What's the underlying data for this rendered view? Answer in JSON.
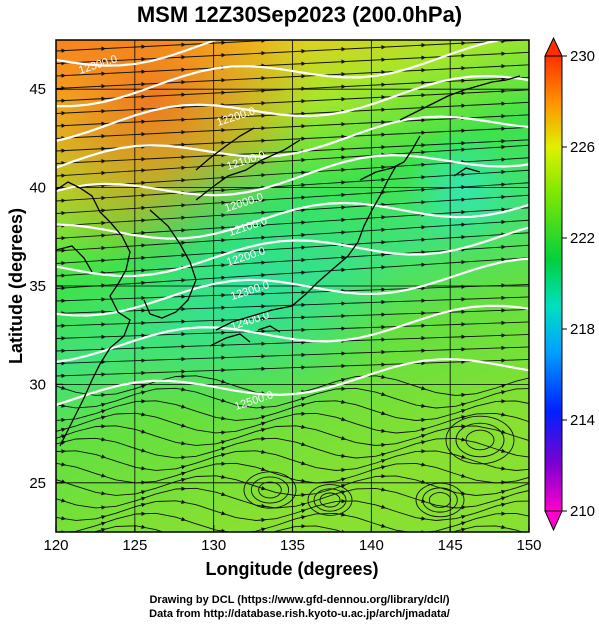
{
  "title": "MSM 12Z30Sep2023 (200.0hPa)",
  "x_axis": {
    "label": "Longitude (degrees)",
    "ticks": [
      "120",
      "125",
      "130",
      "135",
      "140",
      "145",
      "150"
    ],
    "range": [
      120,
      150
    ]
  },
  "y_axis": {
    "label": "Latitude (degrees)",
    "ticks": [
      "25",
      "30",
      "35",
      "40",
      "45"
    ],
    "range": [
      22.5,
      47.5
    ]
  },
  "colorbar": {
    "ticks": [
      "230",
      "226",
      "222",
      "218",
      "214",
      "210"
    ],
    "range": [
      210,
      230
    ],
    "colors": [
      "#ff00cc",
      "#5a00c8",
      "#0030ff",
      "#00a0ff",
      "#00e0c0",
      "#00d040",
      "#40e000",
      "#c0f000",
      "#ffd000",
      "#ff8000",
      "#ff3000"
    ]
  },
  "contour_labels": [
    "12300.0",
    "12200.0",
    "12100.0",
    "12000.0",
    "12100.0",
    "12200.0",
    "12300.0",
    "12400.0",
    "12500.0"
  ],
  "credits": {
    "line1": "Drawing by DCL (https://www.gfd-dennou.org/library/dcl/)",
    "line2": "Data from http://database.rish.kyoto-u.ac.jp/arch/jmadata/"
  },
  "chart_data": {
    "type": "heatmap",
    "title": "MSM 12Z30Sep2023 (200.0hPa)",
    "xlabel": "Longitude (degrees)",
    "ylabel": "Latitude (degrees)",
    "xlim": [
      120,
      150
    ],
    "ylim": [
      22.5,
      47.5
    ],
    "color_range": [
      210,
      230
    ],
    "colorbar_ticks": [
      210,
      214,
      218,
      222,
      226,
      230
    ],
    "x_ticks": [
      120,
      125,
      130,
      135,
      140,
      145,
      150
    ],
    "y_ticks": [
      25,
      30,
      35,
      40,
      45
    ],
    "overlay": [
      "streamlines (wind)",
      "geopotential height contours (white)",
      "coastlines"
    ]
  }
}
